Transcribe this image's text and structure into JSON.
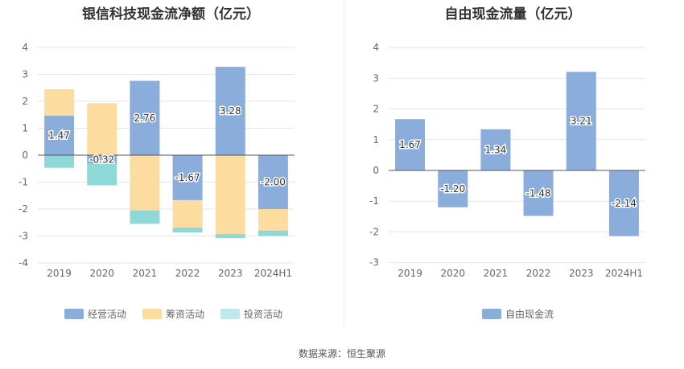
{
  "source_text": "数据来源：恒生聚源",
  "colors": {
    "operating": "#8aaddb",
    "financing": "#fddca0",
    "investing": "#8fd8d8",
    "fcf": "#8aaddb"
  },
  "chart_data": [
    {
      "type": "bar",
      "stacked": true,
      "title": "银信科技现金流净额（亿元）",
      "categories": [
        "2019",
        "2020",
        "2021",
        "2022",
        "2023",
        "2024H1"
      ],
      "ylim": [
        -4,
        4
      ],
      "yticks": [
        4,
        3,
        2,
        1,
        0,
        -1,
        -2,
        -3,
        -4
      ],
      "grid": true,
      "legend_position": "bottom",
      "series": [
        {
          "name": "经营活动",
          "values": [
            1.47,
            -0.32,
            2.76,
            -1.67,
            3.28,
            -2.0
          ],
          "labels": [
            "1.47",
            "-0.32",
            "2.76",
            "-1.67",
            "3.28",
            "-2.00"
          ]
        },
        {
          "name": "筹资活动",
          "values": [
            0.98,
            1.93,
            -2.05,
            -1.02,
            -2.93,
            -0.8
          ],
          "labels": []
        },
        {
          "name": "投资活动",
          "values": [
            -0.47,
            -0.8,
            -0.5,
            -0.18,
            -0.15,
            -0.2
          ],
          "labels": []
        }
      ]
    },
    {
      "type": "bar",
      "title": "自由现金流量（亿元）",
      "categories": [
        "2019",
        "2020",
        "2021",
        "2022",
        "2023",
        "2024H1"
      ],
      "ylim": [
        -3,
        4
      ],
      "yticks": [
        4,
        3,
        2,
        1,
        0,
        -1,
        -2,
        -3
      ],
      "grid": true,
      "legend_position": "bottom",
      "series": [
        {
          "name": "自由现金流",
          "values": [
            1.67,
            -1.2,
            1.34,
            -1.48,
            3.21,
            -2.14
          ],
          "labels": [
            "1.67",
            "-1.20",
            "1.34",
            "-1.48",
            "3.21",
            "-2.14"
          ]
        }
      ]
    }
  ]
}
